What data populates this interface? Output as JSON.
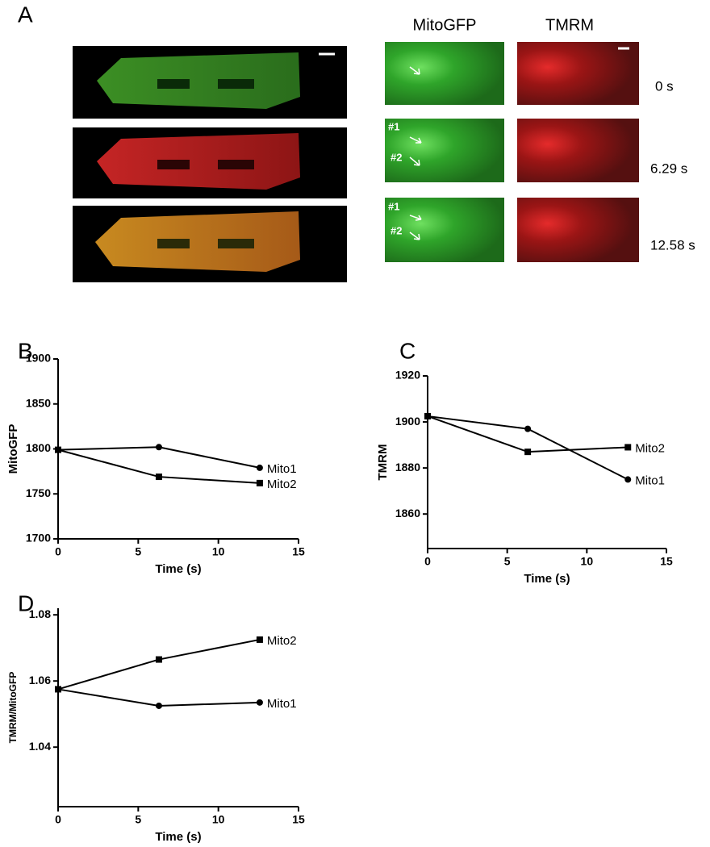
{
  "panel_a": {
    "label": "A",
    "columns": [
      "MitoGFP",
      "TMRM"
    ],
    "times": [
      "0 s",
      "6.29 s",
      "12.58 s"
    ],
    "markers": [
      "#1",
      "#2"
    ]
  },
  "chart_data": [
    {
      "type": "line",
      "label": "B",
      "xlabel": "Time (s)",
      "ylabel": "MitoGFP",
      "xlim": [
        0,
        15
      ],
      "xticks": [
        0,
        5,
        10,
        15
      ],
      "ylim": [
        1700,
        1900
      ],
      "yticks": [
        1700,
        1750,
        1800,
        1850,
        1900
      ],
      "x": [
        0,
        6.29,
        12.58
      ],
      "series": [
        {
          "name": "Mito1",
          "color": "#000000",
          "marker": "circle",
          "values": [
            1799,
            1802,
            1779
          ]
        },
        {
          "name": "Mito2",
          "color": "#000000",
          "marker": "square",
          "values": [
            1799,
            1769,
            1762
          ]
        }
      ]
    },
    {
      "type": "line",
      "label": "C",
      "xlabel": "Time (s)",
      "ylabel": "TMRM",
      "xlim": [
        0,
        15
      ],
      "xticks": [
        0,
        5,
        10,
        15
      ],
      "ylim": [
        1845,
        1920
      ],
      "yticks": [
        1860,
        1880,
        1900,
        1920
      ],
      "x": [
        0,
        6.29,
        12.58
      ],
      "series": [
        {
          "name": "Mito1",
          "color": "#000000",
          "marker": "circle",
          "values": [
            1902.5,
            1897,
            1875
          ]
        },
        {
          "name": "Mito2",
          "color": "#000000",
          "marker": "square",
          "values": [
            1902.5,
            1887,
            1889
          ]
        }
      ]
    },
    {
      "type": "line",
      "label": "D",
      "xlabel": "Time (s)",
      "ylabel": "TMRM/MitoGFP",
      "xlim": [
        0,
        15
      ],
      "xticks": [
        0,
        5,
        10,
        15
      ],
      "ylim": [
        1.022,
        1.082
      ],
      "yticks": [
        1.04,
        1.06,
        1.08
      ],
      "x": [
        0,
        6.29,
        12.58
      ],
      "series": [
        {
          "name": "Mito1",
          "color": "#000000",
          "marker": "circle",
          "values": [
            1.0575,
            1.0525,
            1.0535
          ]
        },
        {
          "name": "Mito2",
          "color": "#000000",
          "marker": "square",
          "values": [
            1.0575,
            1.0665,
            1.0725
          ]
        }
      ]
    }
  ]
}
